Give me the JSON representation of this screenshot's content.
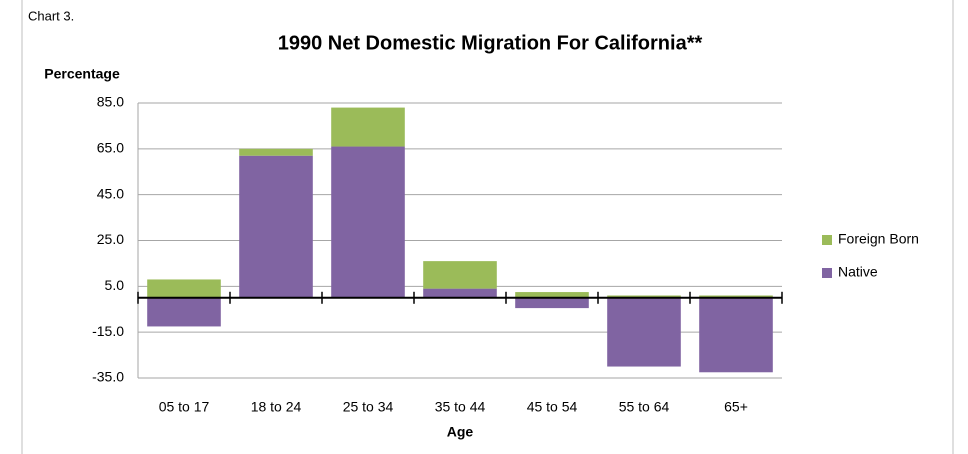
{
  "chart_data": {
    "type": "stacked_bar",
    "label": "Chart 3.",
    "title": "1990 Net Domestic Migration For California**",
    "ylabel": "Percentage",
    "xlabel": "Age",
    "categories": [
      "05 to 17",
      "18 to 24",
      "25 to 34",
      "35 to 44",
      "45 to 54",
      "55 to 64",
      "65+"
    ],
    "series": [
      {
        "name": "Native",
        "color": "#8064a2",
        "values": [
          -12.5,
          62,
          66,
          4,
          -4.5,
          -30,
          -32.5
        ]
      },
      {
        "name": "Foreign Born",
        "color": "#9bbb59",
        "values": [
          8,
          3,
          17,
          12,
          2.5,
          1,
          1
        ]
      }
    ],
    "ylim": [
      -35,
      85
    ],
    "yticks": [
      {
        "value": -35,
        "label": "-35.0"
      },
      {
        "value": -15,
        "label": "-15.0"
      },
      {
        "value": 5,
        "label": "5.0"
      },
      {
        "value": 25,
        "label": "25.0"
      },
      {
        "value": 45,
        "label": "45.0"
      },
      {
        "value": 65,
        "label": "65.0"
      },
      {
        "value": 85,
        "label": "85.0"
      }
    ],
    "grid": true,
    "legend": "right"
  }
}
